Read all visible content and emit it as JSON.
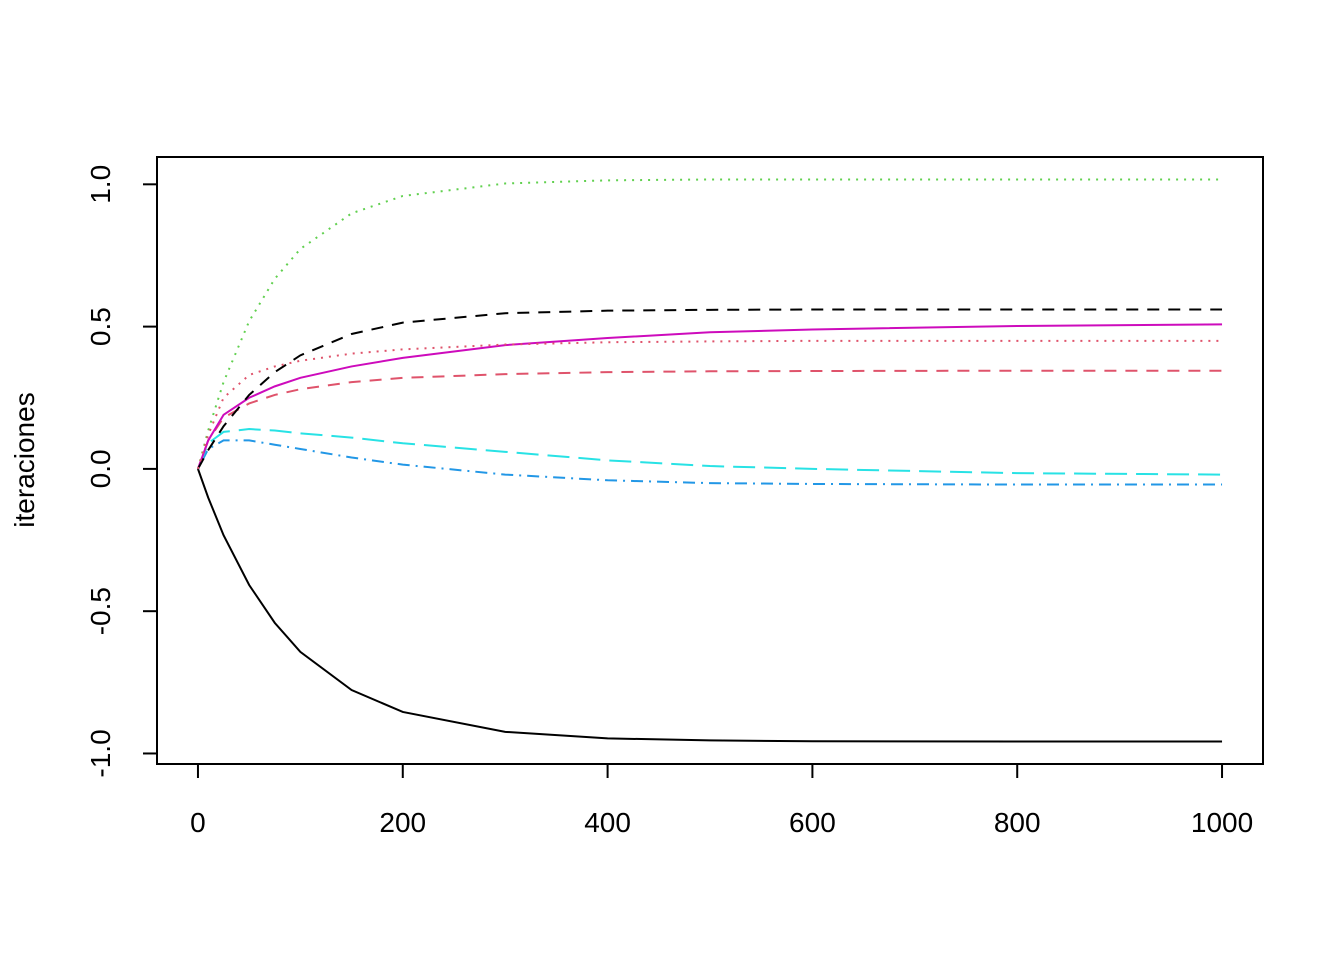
{
  "chart_data": {
    "type": "line",
    "y_label": "iteraciones",
    "x": [
      0,
      10,
      25,
      50,
      75,
      100,
      150,
      200,
      300,
      400,
      500,
      600,
      800,
      1000
    ],
    "xlim": [
      -40,
      1040
    ],
    "xticks": [
      0,
      200,
      400,
      600,
      800,
      1000
    ],
    "ylim": [
      -1.037,
      1.096
    ],
    "yticks": [
      {
        "value": -1,
        "label": "-1.0"
      },
      {
        "value": -0.5,
        "label": "-0.5"
      },
      {
        "value": 0,
        "label": "0.0"
      },
      {
        "value": 0.5,
        "label": "0.5"
      },
      {
        "value": 1,
        "label": "1.0"
      }
    ],
    "series": [
      {
        "color": "#000000",
        "dash": "solid",
        "values": [
          0,
          -0.101,
          -0.233,
          -0.408,
          -0.541,
          -0.643,
          -0.777,
          -0.854,
          -0.924,
          -0.947,
          -0.954,
          -0.957,
          -0.958,
          -0.958
        ]
      },
      {
        "color": "#DF536B",
        "dash": "dashed",
        "values": [
          0,
          0.1,
          0.18,
          0.23,
          0.26,
          0.28,
          0.305,
          0.32,
          0.333,
          0.34,
          0.343,
          0.344,
          0.345,
          0.345
        ]
      },
      {
        "color": "#61D04F",
        "dash": "dotted",
        "values": [
          0,
          0.135,
          0.305,
          0.519,
          0.668,
          0.773,
          0.898,
          0.959,
          1.003,
          1.014,
          1.017,
          1.017,
          1.017,
          1.017
        ]
      },
      {
        "color": "#2297E6",
        "dash": "dotdash",
        "values": [
          0,
          0.07,
          0.1,
          0.1,
          0.085,
          0.07,
          0.04,
          0.015,
          -0.02,
          -0.04,
          -0.05,
          -0.053,
          -0.055,
          -0.055
        ]
      },
      {
        "color": "#28E2E5",
        "dash": "longdash",
        "values": [
          0,
          0.09,
          0.13,
          0.14,
          0.135,
          0.125,
          0.11,
          0.09,
          0.06,
          0.03,
          0.01,
          0,
          -0.015,
          -0.02
        ]
      },
      {
        "color": "#CD0BBC",
        "dash": "solid",
        "values": [
          0,
          0.1,
          0.19,
          0.25,
          0.29,
          0.32,
          0.36,
          0.39,
          0.435,
          0.46,
          0.48,
          0.49,
          0.502,
          0.508
        ]
      },
      {
        "color": "#000000",
        "dash": "dashed",
        "values": [
          0,
          0.066,
          0.15,
          0.26,
          0.34,
          0.399,
          0.474,
          0.514,
          0.547,
          0.556,
          0.559,
          0.56,
          0.56,
          0.56
        ]
      },
      {
        "color": "#DF536B",
        "dash": "dotted",
        "values": [
          0,
          0.12,
          0.25,
          0.33,
          0.36,
          0.38,
          0.405,
          0.42,
          0.437,
          0.445,
          0.448,
          0.45,
          0.45,
          0.45
        ]
      }
    ]
  }
}
